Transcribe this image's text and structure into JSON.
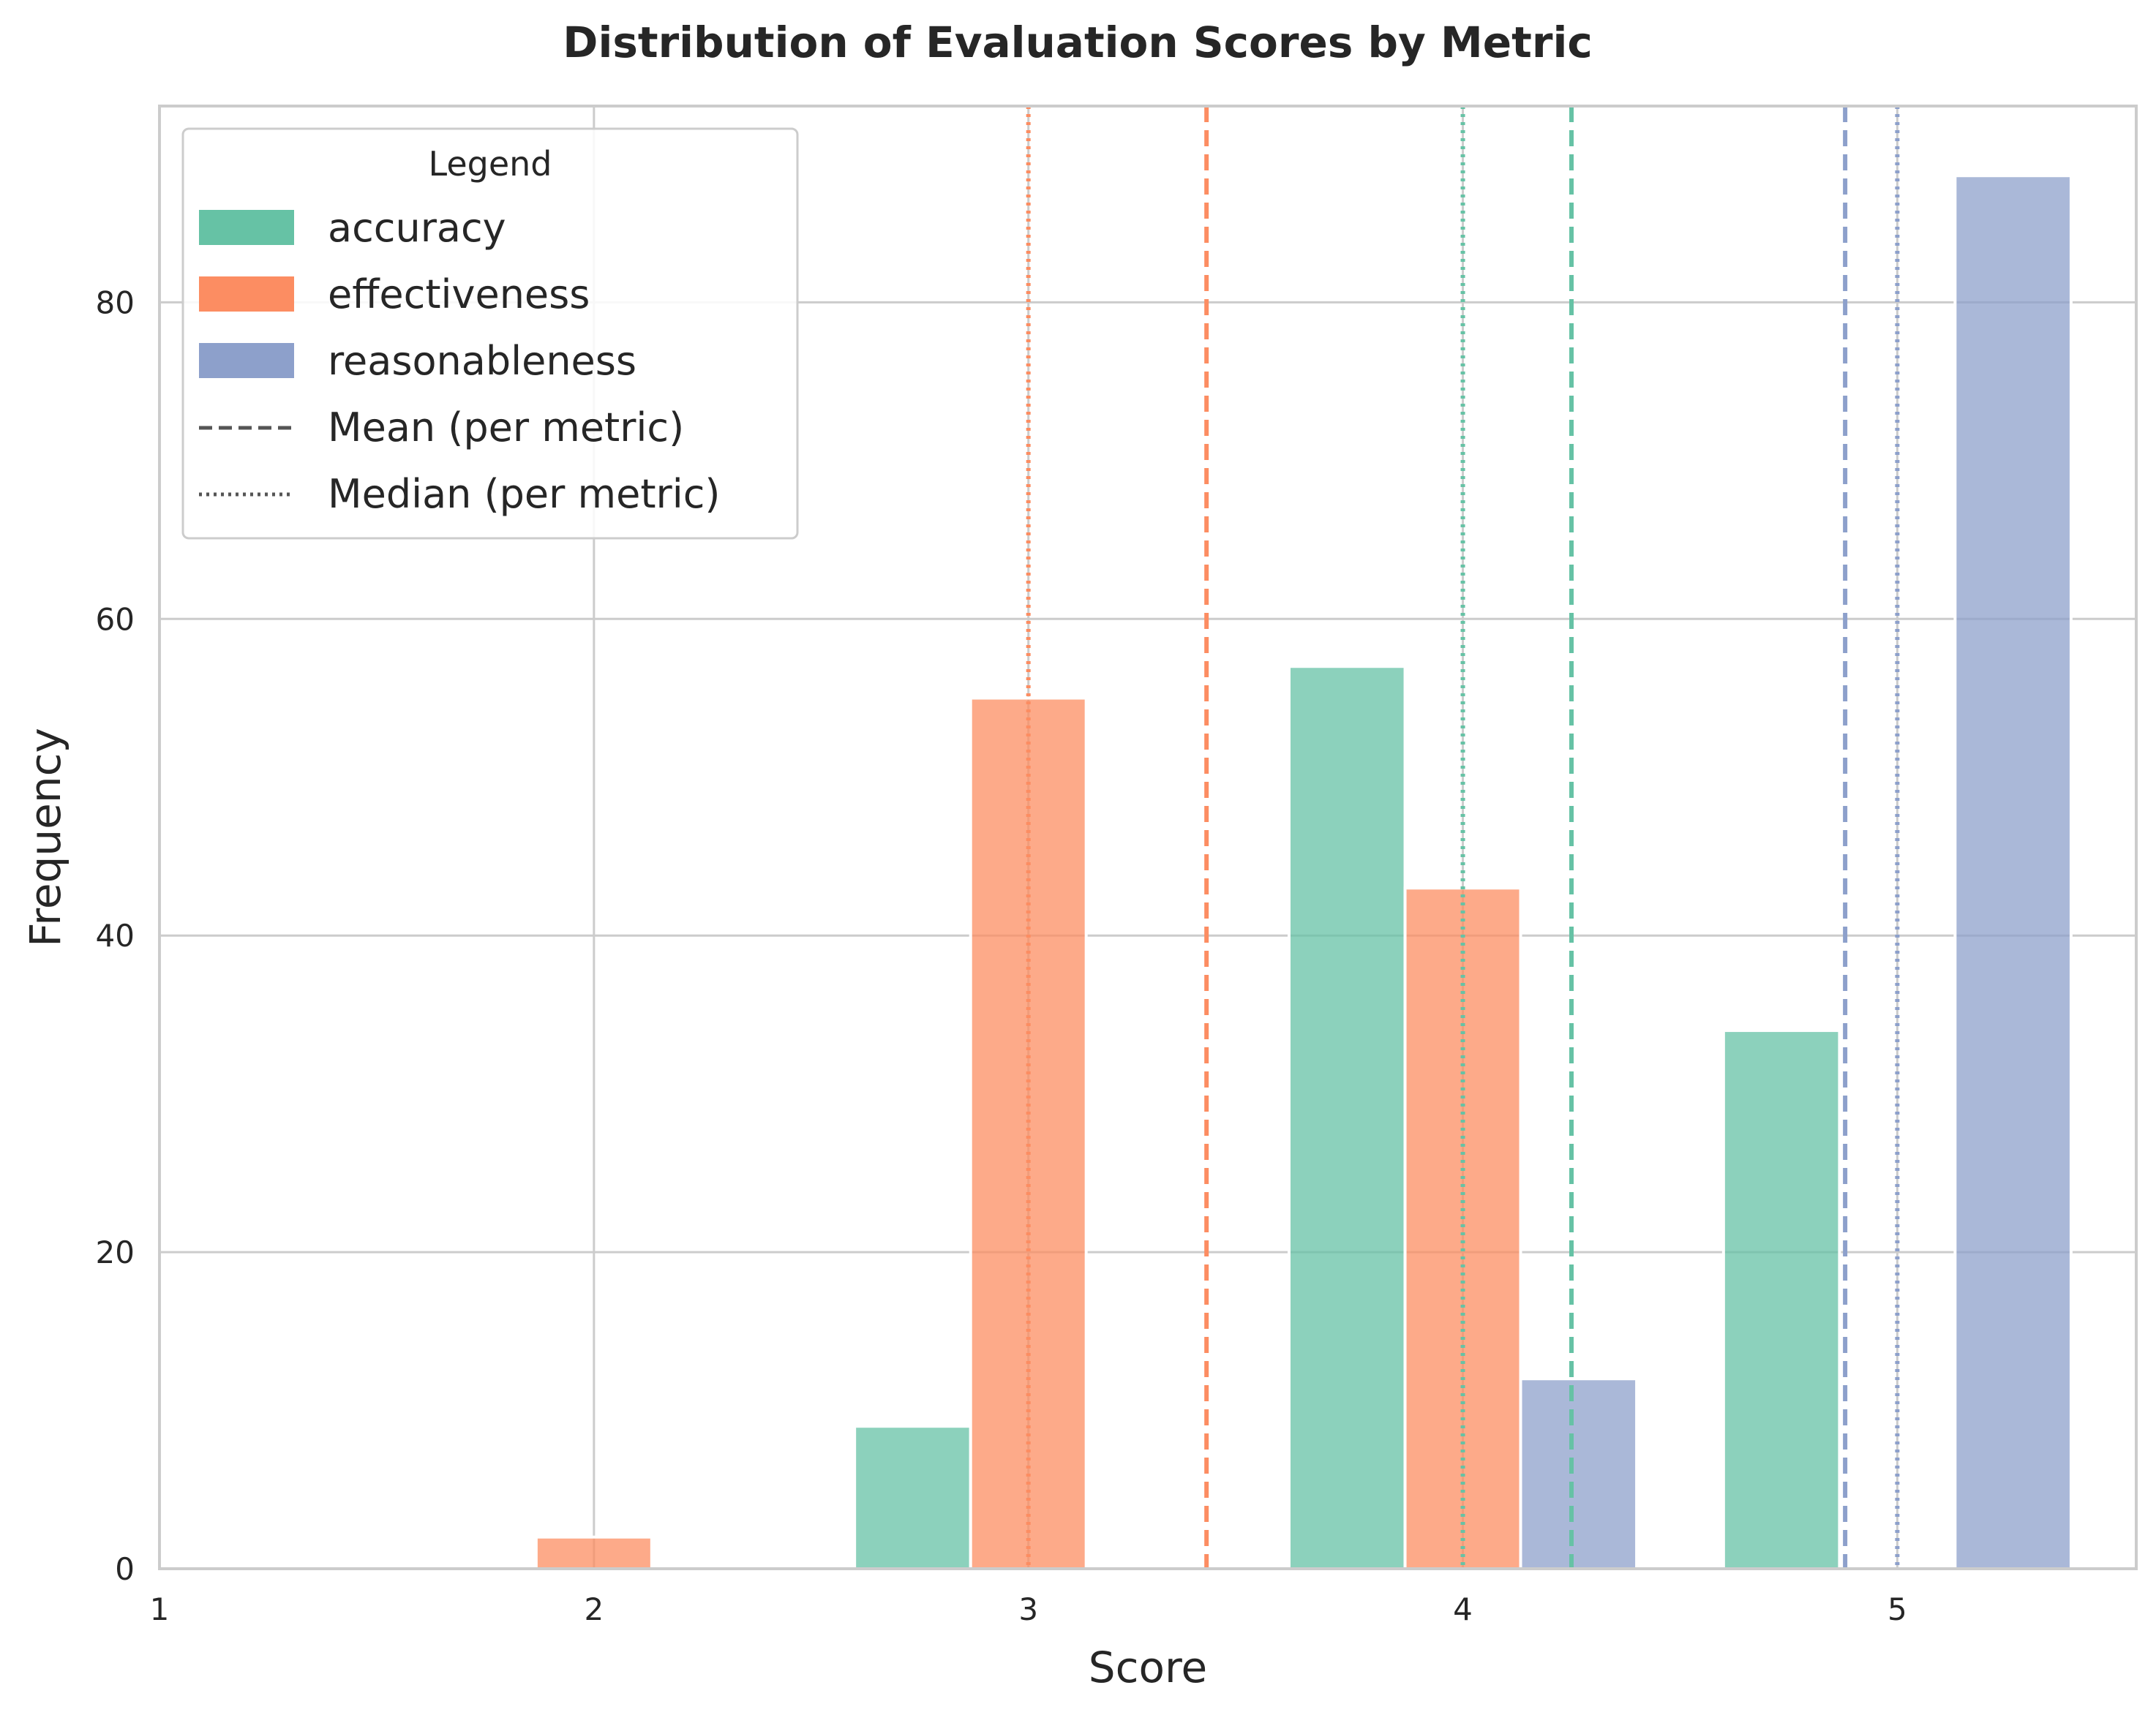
{
  "chart_data": {
    "type": "bar",
    "title": "Distribution of Evaluation Scores by Metric",
    "xlabel": "Score",
    "ylabel": "Frequency",
    "xlim": [
      1,
      5.55
    ],
    "ylim": [
      0,
      92.4
    ],
    "xticks": [
      1,
      2,
      3,
      4,
      5
    ],
    "yticks": [
      0,
      20,
      40,
      60,
      80
    ],
    "grid": true,
    "legend_title": "Legend",
    "legend_position": "top-left",
    "series": [
      {
        "name": "accuracy",
        "color": "#66c2a5",
        "bins": [
          {
            "x0": 2.6,
            "x1": 2.867,
            "value": 9
          },
          {
            "x0": 3.6,
            "x1": 3.867,
            "value": 57
          },
          {
            "x0": 4.6,
            "x1": 4.867,
            "value": 34
          }
        ],
        "mean": 4.25,
        "median": 4.0
      },
      {
        "name": "effectiveness",
        "color": "#fc8d62",
        "bins": [
          {
            "x0": 1.867,
            "x1": 2.133,
            "value": 2
          },
          {
            "x0": 2.867,
            "x1": 3.133,
            "value": 55
          },
          {
            "x0": 3.867,
            "x1": 4.133,
            "value": 43
          }
        ],
        "mean": 3.41,
        "median": 3.0
      },
      {
        "name": "reasonableness",
        "color": "#8da0cb",
        "bins": [
          {
            "x0": 4.133,
            "x1": 4.4,
            "value": 12
          },
          {
            "x0": 5.133,
            "x1": 5.4,
            "value": 88
          }
        ],
        "mean": 4.88,
        "median": 5.0
      }
    ],
    "reference_lines": [
      {
        "label": "Mean (per metric)",
        "style": "dashed"
      },
      {
        "label": "Median (per metric)",
        "style": "dotted"
      }
    ]
  }
}
